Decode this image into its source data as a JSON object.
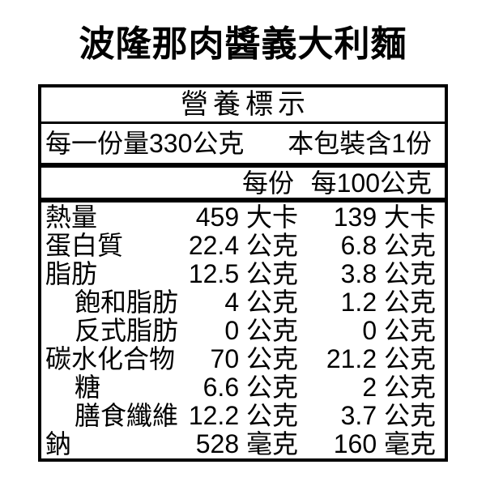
{
  "title": "波隆那肉醬義大利麵",
  "colors": {
    "text": "#000000",
    "background": "#ffffff",
    "border": "#000000"
  },
  "nutrition_label": {
    "header": "營養標示",
    "serving_size": "每一份量330公克",
    "servings_per_package": "本包裝含1份",
    "columns": {
      "per_serving": "每份",
      "per_100g": "每100公克"
    },
    "rows": [
      {
        "label": "熱量",
        "indent": false,
        "per_serving": "459 大卡",
        "per_100g": "139 大卡"
      },
      {
        "label": "蛋白質",
        "indent": false,
        "per_serving": "22.4 公克",
        "per_100g": "6.8 公克"
      },
      {
        "label": "脂肪",
        "indent": false,
        "per_serving": "12.5 公克",
        "per_100g": "3.8 公克"
      },
      {
        "label": "飽和脂肪",
        "indent": true,
        "per_serving": "4 公克",
        "per_100g": "1.2 公克"
      },
      {
        "label": "反式脂肪",
        "indent": true,
        "per_serving": "0 公克",
        "per_100g": "0 公克"
      },
      {
        "label": "碳水化合物",
        "indent": false,
        "per_serving": "70 公克",
        "per_100g": "21.2 公克"
      },
      {
        "label": "糖",
        "indent": true,
        "per_serving": "6.6 公克",
        "per_100g": "2 公克"
      },
      {
        "label": "膳食纖維",
        "indent": true,
        "per_serving": "12.2 公克",
        "per_100g": "3.7 公克"
      },
      {
        "label": "鈉",
        "indent": false,
        "per_serving": "528 毫克",
        "per_100g": "160 毫克"
      }
    ]
  }
}
